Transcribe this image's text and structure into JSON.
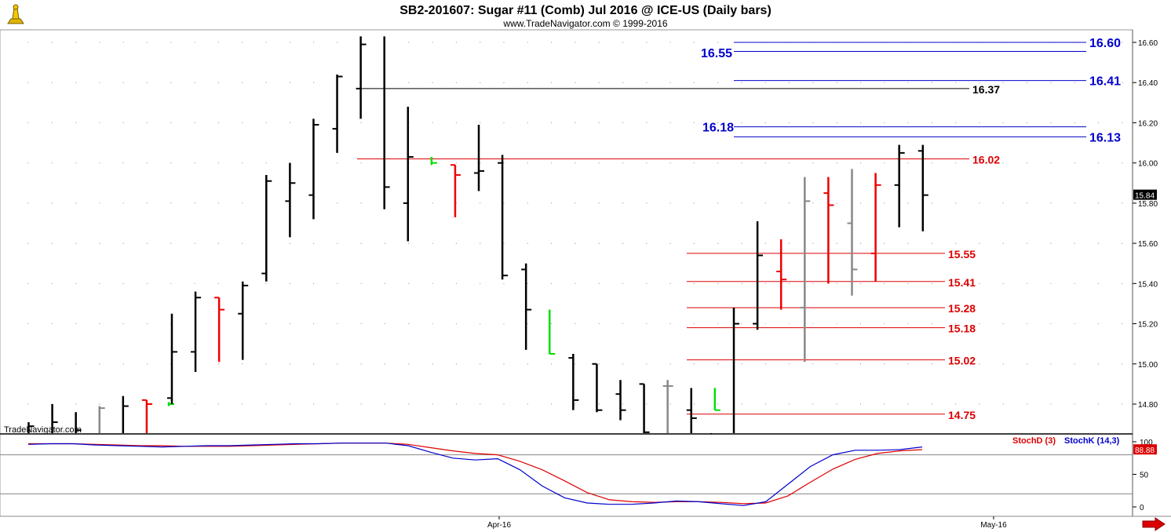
{
  "header": {
    "title": "SB2-201607:  Sugar #11 (Comb) Jul 2016 @ ICE-US  (Daily bars)",
    "copyright": "www.TradeNavigator.com © 1999-2016"
  },
  "watermark": "TradeNavigator.com",
  "icons": {
    "logo": "trade-navigator-logo-icon",
    "scroll": "scroll-right-arrow-icon"
  },
  "colors": {
    "up": "#000000",
    "down": "#ee0000",
    "neutral": "#808080",
    "signal": "#00cc00",
    "blueLine": "#0000cc",
    "redLine": "#dd0000"
  },
  "chart_data": [
    {
      "type": "bar",
      "subtype": "ohlc",
      "ylim": [
        14.63,
        16.73
      ],
      "yticks": [
        "16.60",
        "16.40",
        "16.20",
        "16.00",
        "15.80",
        "15.60",
        "15.40",
        "15.20",
        "15.00",
        "14.80"
      ],
      "xticks": [
        "Apr-16",
        "May-16"
      ],
      "last_price": "15.84",
      "bars": [
        {
          "h": 14.71,
          "l": 14.63,
          "c": 14.69,
          "color": "black"
        },
        {
          "h": 14.8,
          "l": 14.63,
          "c": 14.71,
          "color": "black"
        },
        {
          "h": 14.76,
          "l": 14.63,
          "c": 14.67,
          "color": "black"
        },
        {
          "h": 14.79,
          "l": 14.63,
          "c": 14.78,
          "color": "gray"
        },
        {
          "h": 14.84,
          "l": 14.63,
          "c": 14.79,
          "color": "black"
        },
        {
          "h": 14.82,
          "l": 14.63,
          "c": 14.8,
          "o": 14.82,
          "color": "red"
        },
        {
          "h": 14.81,
          "l": 14.79,
          "c": 14.8,
          "color": "green"
        },
        {
          "h": 15.25,
          "l": 14.8,
          "c": 15.06,
          "o": 14.83,
          "color": "black"
        },
        {
          "h": 15.36,
          "l": 14.96,
          "c": 15.33,
          "o": 15.06,
          "color": "black"
        },
        {
          "h": 15.33,
          "l": 15.01,
          "c": 15.27,
          "o": 15.33,
          "color": "red"
        },
        {
          "h": 15.41,
          "l": 15.02,
          "c": 15.39,
          "o": 15.25,
          "color": "black"
        },
        {
          "h": 15.94,
          "l": 15.41,
          "c": 15.91,
          "o": 15.45,
          "color": "black"
        },
        {
          "h": 16.0,
          "l": 15.63,
          "c": 15.9,
          "o": 15.81,
          "color": "black"
        },
        {
          "h": 16.22,
          "l": 15.72,
          "c": 16.19,
          "o": 15.84,
          "color": "black"
        },
        {
          "h": 16.44,
          "l": 16.05,
          "c": 16.43,
          "o": 16.17,
          "color": "black"
        },
        {
          "h": 16.63,
          "l": 16.22,
          "c": 16.59,
          "o": 16.37,
          "color": "black"
        },
        {
          "h": 16.63,
          "l": 15.77,
          "c": 15.88,
          "color": "black"
        },
        {
          "h": 16.28,
          "l": 15.61,
          "c": 16.03,
          "o": 15.8,
          "color": "black"
        },
        {
          "h": 16.03,
          "l": 15.99,
          "c": 16.0,
          "color": "green"
        },
        {
          "h": 15.99,
          "l": 15.73,
          "c": 15.94,
          "o": 15.99,
          "color": "red"
        },
        {
          "h": 16.19,
          "l": 15.86,
          "c": 15.96,
          "o": 15.95,
          "color": "black"
        },
        {
          "h": 16.04,
          "l": 15.42,
          "c": 15.44,
          "o": 16.0,
          "color": "black"
        },
        {
          "h": 15.5,
          "l": 15.07,
          "c": 15.27,
          "o": 15.47,
          "color": "black"
        },
        {
          "h": 15.27,
          "l": 15.05,
          "c": 15.05,
          "color": "green"
        },
        {
          "h": 15.05,
          "l": 14.77,
          "c": 14.82,
          "o": 15.03,
          "color": "black"
        },
        {
          "h": 15.0,
          "l": 14.76,
          "c": 14.77,
          "o": 15.0,
          "color": "black"
        },
        {
          "h": 14.92,
          "l": 14.72,
          "c": 14.77,
          "o": 14.85,
          "color": "black"
        },
        {
          "h": 14.9,
          "l": 14.63,
          "c": 14.66,
          "o": 14.9,
          "color": "black"
        },
        {
          "h": 14.92,
          "l": 14.63,
          "c": 14.89,
          "o": 14.89,
          "color": "gray"
        },
        {
          "h": 14.88,
          "l": 14.63,
          "c": 14.73,
          "o": 14.77,
          "color": "black"
        },
        {
          "h": 14.88,
          "l": 14.77,
          "c": 14.77,
          "color": "green"
        },
        {
          "h": 14.65,
          "l": 14.63,
          "c": 14.64,
          "color": "black"
        },
        {
          "h": 15.28,
          "l": 14.63,
          "c": 15.2,
          "color": "black"
        },
        {
          "h": 15.71,
          "l": 15.17,
          "c": 15.54,
          "o": 15.2,
          "color": "black"
        },
        {
          "h": 15.62,
          "l": 15.27,
          "c": 15.42,
          "o": 15.46,
          "color": "red"
        },
        {
          "h": 15.93,
          "l": 15.01,
          "c": 15.81,
          "o": 15.28,
          "color": "gray"
        },
        {
          "h": 15.93,
          "l": 15.4,
          "c": 15.79,
          "o": 15.85,
          "color": "red"
        },
        {
          "h": 15.97,
          "l": 15.34,
          "c": 15.47,
          "o": 15.7,
          "color": "gray"
        },
        {
          "h": 15.95,
          "l": 15.41,
          "c": 15.89,
          "o": 15.55,
          "color": "red"
        },
        {
          "h": 16.09,
          "l": 15.68,
          "c": 16.05,
          "o": 15.89,
          "color": "black"
        },
        {
          "h": 16.09,
          "l": 15.66,
          "c": 15.84,
          "o": 16.06,
          "color": "black"
        }
      ],
      "levels": [
        {
          "value": 16.6,
          "label": "16.60",
          "color": "blue"
        },
        {
          "value": 16.55,
          "label": "16.55",
          "color": "blue"
        },
        {
          "value": 16.41,
          "label": "16.41",
          "color": "blue"
        },
        {
          "value": 16.37,
          "label": "16.37",
          "color": "black"
        },
        {
          "value": 16.18,
          "label": "16.18",
          "color": "blue"
        },
        {
          "value": 16.13,
          "label": "16.13",
          "color": "blue"
        },
        {
          "value": 16.02,
          "label": "16.02",
          "color": "red"
        },
        {
          "value": 15.55,
          "label": "15.55",
          "color": "red"
        },
        {
          "value": 15.41,
          "label": "15.41",
          "color": "red"
        },
        {
          "value": 15.28,
          "label": "15.28",
          "color": "red"
        },
        {
          "value": 15.18,
          "label": "15.18",
          "color": "red"
        },
        {
          "value": 15.02,
          "label": "15.02",
          "color": "red"
        }
      ],
      "level_1475": {
        "value": 14.75,
        "label": "14.75",
        "color": "red"
      }
    },
    {
      "type": "line",
      "ylim": [
        0,
        100
      ],
      "yticks": [
        "100",
        "50",
        "0"
      ],
      "last_value": "88.88",
      "series": [
        {
          "name": "StochD (3)",
          "color": "red",
          "values": [
            97,
            97,
            97,
            96,
            95,
            94,
            94,
            93,
            93,
            93,
            94,
            95,
            96,
            97,
            98,
            98,
            98,
            96,
            91,
            86,
            82,
            80,
            70,
            57,
            40,
            22,
            11,
            8,
            7,
            8,
            8,
            7,
            5,
            6,
            17,
            38,
            58,
            73,
            82,
            86,
            88
          ]
        },
        {
          "name": "StochK (14,3)",
          "color": "blue",
          "values": [
            96,
            97,
            97,
            95,
            94,
            93,
            92,
            93,
            94,
            94,
            95,
            96,
            97,
            97,
            98,
            98,
            98,
            94,
            84,
            75,
            72,
            74,
            57,
            32,
            14,
            6,
            4,
            4,
            6,
            9,
            8,
            5,
            2,
            8,
            35,
            62,
            80,
            87,
            87,
            88,
            92
          ]
        }
      ]
    }
  ]
}
